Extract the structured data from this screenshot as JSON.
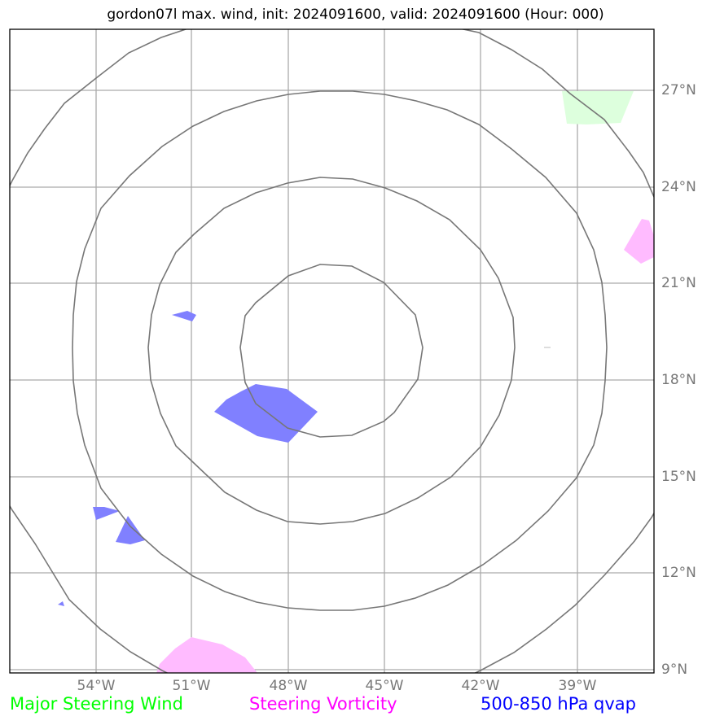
{
  "title": "gordon07l max. wind, init: 2024091600, valid: 2024091600 (Hour: 000)",
  "longitude_labels": [
    "54°W",
    "51°W",
    "48°W",
    "45°W",
    "42°W",
    "39°W"
  ],
  "latitude_labels": [
    "27°N",
    "24°N",
    "21°N",
    "18°N",
    "15°N",
    "12°N",
    "9°N"
  ],
  "legend": [
    {
      "label": "Major Steering Wind",
      "color": "#00ff00"
    },
    {
      "label": "Steering Vorticity",
      "color": "#ff00ff"
    },
    {
      "label": "500-850 hPa qvap",
      "color": "#0000ff"
    }
  ],
  "colors": {
    "steering_wind_fill": "#ddffdd",
    "vorticity_fill": "#ffbbff",
    "qvap_fill": "#8080ff",
    "range_rings": "#777777",
    "gridlines": "#aaaaaa"
  }
}
